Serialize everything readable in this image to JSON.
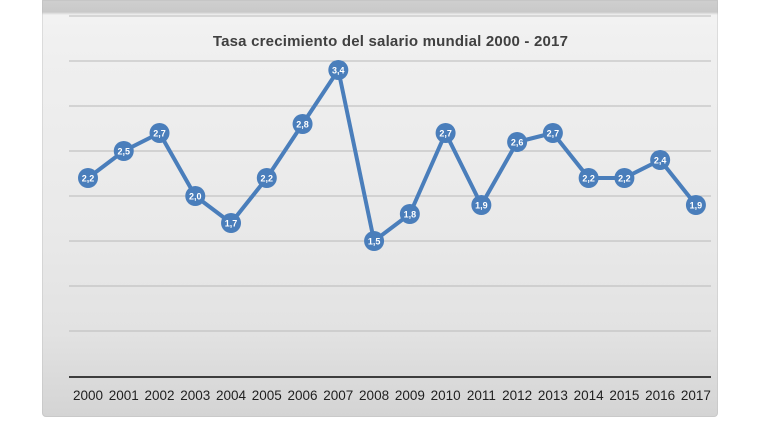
{
  "page": {
    "background": "#ffffff"
  },
  "colors": {
    "series_blue": "#4a7ebb",
    "marker_label_text": "#ffffff",
    "gridline": "#b9b9b9",
    "axis_line": "#3d3d3d",
    "title_text": "#404040",
    "tick_label_text": "#1f1f1f",
    "chart_bg_light": "#f2f2f2",
    "chart_bg_dark": "#cfcfcf"
  },
  "chart_data": {
    "type": "line",
    "title": "Tasa crecimiento del salario mundial 2000 - 2017",
    "categories": [
      "2000",
      "2001",
      "2002",
      "2003",
      "2004",
      "2005",
      "2006",
      "2007",
      "2008",
      "2009",
      "2010",
      "2011",
      "2012",
      "2013",
      "2014",
      "2015",
      "2016",
      "2017"
    ],
    "values": [
      2.2,
      2.5,
      2.7,
      2.0,
      1.7,
      2.2,
      2.8,
      3.4,
      1.5,
      1.8,
      2.7,
      1.9,
      2.6,
      2.7,
      2.2,
      2.2,
      2.4,
      1.9
    ],
    "point_labels": [
      "2,2",
      "2,5",
      "2,7",
      "2,0",
      "1,7",
      "2,2",
      "2,8",
      "3,4",
      "1,5",
      "1,8",
      "2,7",
      "1,9",
      "2,6",
      "2,7",
      "2,2",
      "2,2",
      "2,4",
      "1,9"
    ],
    "decimal_separator": ",",
    "xlabel": "",
    "ylabel": "",
    "ylim": [
      0,
      4
    ],
    "y_gridline_step": 0.5,
    "y_tick_labels_visible": false,
    "grid": true,
    "legend": false,
    "marker": "circle-with-value"
  }
}
